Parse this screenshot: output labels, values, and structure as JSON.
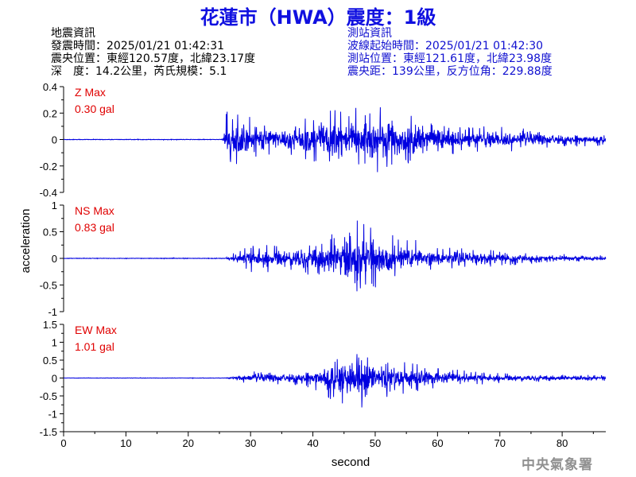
{
  "header": {
    "title": "花蓮市（HWA）震度：1級"
  },
  "quake_info": {
    "heading": "地震資訊",
    "time": "發震時間：2025/01/21 01:42:31",
    "epicenter": "震央位置：東經120.57度，北緯23.17度",
    "depth": "深　度：14.2公里，芮氏規模：5.1"
  },
  "station_info": {
    "heading": "測站資訊",
    "wave_start": "波線起始時間：2025/01/21 01:42:30",
    "location": "測站位置：東經121.61度，北緯23.98度",
    "distance": "震央距：139公里，反方位角：229.88度"
  },
  "footer": {
    "agency": "中央氣象署"
  },
  "colors": {
    "trace": "#0000e0",
    "max_label": "#e00000",
    "title": "#1010e0",
    "station_text": "#1010d0"
  },
  "chart_data": {
    "type": "line",
    "xlabel": "second",
    "ylabel": "acceleration",
    "xlim": [
      0,
      87
    ],
    "x_ticks": [
      0,
      10,
      20,
      30,
      40,
      50,
      60,
      70,
      80
    ],
    "grid": false,
    "panels": [
      {
        "name": "Z",
        "max_label": "Z Max",
        "max_value": "0.30 gal",
        "ylim": [
          -0.4,
          0.4
        ],
        "y_ticks": [
          0.4,
          0.2,
          0,
          -0.2,
          -0.4
        ],
        "y_tick_labels": [
          "0.4",
          "0.2",
          "0",
          "-0.2",
          "-0.4"
        ],
        "onset": 26,
        "noise": 0.004,
        "envelope": [
          [
            0,
            0.004
          ],
          [
            25.5,
            0.004
          ],
          [
            26,
            0.2
          ],
          [
            27,
            0.26
          ],
          [
            29,
            0.2
          ],
          [
            32,
            0.14
          ],
          [
            36,
            0.17
          ],
          [
            40,
            0.2
          ],
          [
            44,
            0.23
          ],
          [
            47,
            0.24
          ],
          [
            52,
            0.25
          ],
          [
            55,
            0.2
          ],
          [
            60,
            0.15
          ],
          [
            65,
            0.12
          ],
          [
            70,
            0.1
          ],
          [
            75,
            0.08
          ],
          [
            80,
            0.06
          ],
          [
            87,
            0.05
          ]
        ]
      },
      {
        "name": "NS",
        "max_label": "NS Max",
        "max_value": "0.83 gal",
        "ylim": [
          -1,
          1
        ],
        "y_ticks": [
          1,
          0.5,
          0,
          -0.5,
          -1
        ],
        "y_tick_labels": [
          "1",
          "0.5",
          "0",
          "-0.5",
          "-1"
        ],
        "onset": 26,
        "noise": 0.01,
        "envelope": [
          [
            0,
            0.01
          ],
          [
            26,
            0.01
          ],
          [
            28,
            0.15
          ],
          [
            31,
            0.3
          ],
          [
            35,
            0.25
          ],
          [
            40,
            0.35
          ],
          [
            44,
            0.55
          ],
          [
            47,
            0.75
          ],
          [
            51,
            0.5
          ],
          [
            55,
            0.4
          ],
          [
            60,
            0.25
          ],
          [
            65,
            0.18
          ],
          [
            70,
            0.15
          ],
          [
            75,
            0.1
          ],
          [
            80,
            0.08
          ],
          [
            87,
            0.06
          ]
        ]
      },
      {
        "name": "EW",
        "max_label": "EW Max",
        "max_value": "1.01 gal",
        "ylim": [
          -1.5,
          1.5
        ],
        "y_ticks": [
          1.5,
          1,
          0.5,
          0,
          -0.5,
          -1,
          -1.5
        ],
        "y_tick_labels": [
          "1.5",
          "1",
          "0.5",
          "0",
          "-0.5",
          "-1",
          "-1.5"
        ],
        "onset": 26,
        "noise": 0.01,
        "envelope": [
          [
            0,
            0.01
          ],
          [
            26,
            0.01
          ],
          [
            28,
            0.1
          ],
          [
            31,
            0.2
          ],
          [
            36,
            0.2
          ],
          [
            40,
            0.3
          ],
          [
            43,
            0.7
          ],
          [
            46,
            0.9
          ],
          [
            48,
            0.85
          ],
          [
            51,
            0.6
          ],
          [
            55,
            0.45
          ],
          [
            60,
            0.3
          ],
          [
            65,
            0.2
          ],
          [
            70,
            0.15
          ],
          [
            75,
            0.12
          ],
          [
            80,
            0.1
          ],
          [
            87,
            0.08
          ]
        ]
      }
    ]
  }
}
